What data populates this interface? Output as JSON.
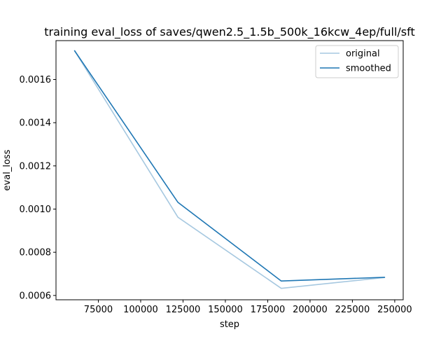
{
  "chart_data": {
    "type": "line",
    "title": "training eval_loss of saves/qwen2.5_1.5b_500k_16kcw_4ep/full/sft",
    "xlabel": "step",
    "ylabel": "eval_loss",
    "xlim": [
      50000,
      255000
    ],
    "ylim": [
      0.00058,
      0.00178
    ],
    "xticks": [
      75000,
      100000,
      125000,
      150000,
      175000,
      200000,
      225000,
      250000
    ],
    "xtick_labels": [
      "75000",
      "100000",
      "125000",
      "150000",
      "175000",
      "200000",
      "225000",
      "250000"
    ],
    "yticks": [
      0.0006,
      0.0008,
      0.001,
      0.0012,
      0.0014,
      0.0016
    ],
    "ytick_labels": [
      "0.0006",
      "0.0008",
      "0.0010",
      "0.0012",
      "0.0014",
      "0.0016"
    ],
    "grid": false,
    "legend_position": "top-right",
    "series": [
      {
        "name": "original",
        "color": "#a6c8e0",
        "x": [
          61000,
          122000,
          183000,
          244000
        ],
        "y": [
          0.001733,
          0.000962,
          0.000633,
          0.000683
        ]
      },
      {
        "name": "smoothed",
        "color": "#1f77b4",
        "x": [
          61000,
          122000,
          183000,
          244000
        ],
        "y": [
          0.001733,
          0.001031,
          0.000667,
          0.000684
        ]
      }
    ]
  }
}
